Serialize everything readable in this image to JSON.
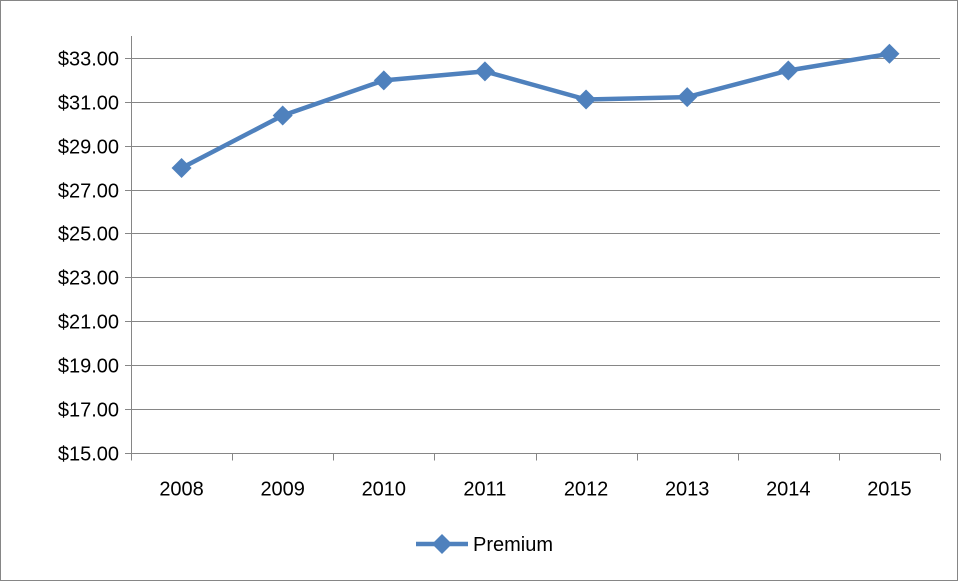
{
  "chart_data": {
    "type": "line",
    "categories": [
      "2008",
      "2009",
      "2010",
      "2011",
      "2012",
      "2013",
      "2014",
      "2015"
    ],
    "series": [
      {
        "name": "Premium",
        "values": [
          27.98,
          30.37,
          31.97,
          32.38,
          31.1,
          31.21,
          32.42,
          33.18
        ],
        "color": "#4F81BD",
        "marker": "diamond"
      }
    ],
    "y_ticks": [
      {
        "value": 15,
        "label": "$15.00"
      },
      {
        "value": 17,
        "label": "$17.00"
      },
      {
        "value": 19,
        "label": "$19.00"
      },
      {
        "value": 21,
        "label": "$21.00"
      },
      {
        "value": 23,
        "label": "$23.00"
      },
      {
        "value": 25,
        "label": "$25.00"
      },
      {
        "value": 27,
        "label": "$27.00"
      },
      {
        "value": 29,
        "label": "$29.00"
      },
      {
        "value": 31,
        "label": "$31.00"
      },
      {
        "value": 33,
        "label": "$33.00"
      }
    ],
    "ylim": [
      15,
      33.9
    ],
    "grid": true,
    "legend": "bottom",
    "gridline_color": "#868686",
    "axis_color": "#868686"
  }
}
